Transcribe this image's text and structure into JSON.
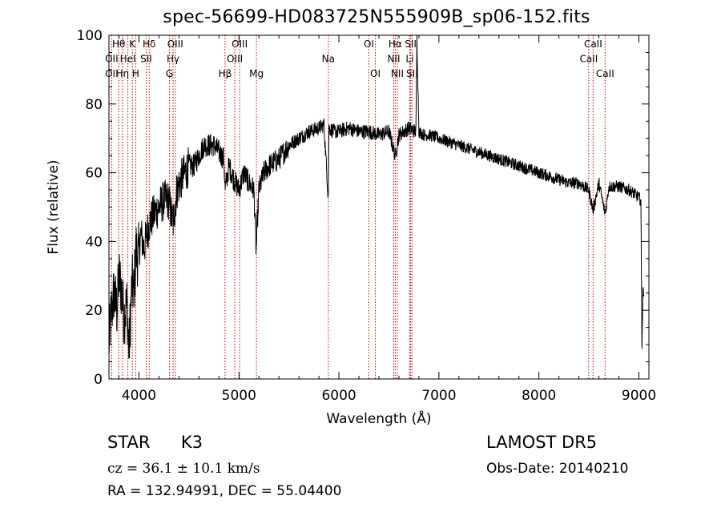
{
  "header": {
    "title": "spec-56699-HD083725N555909B_sp06-152.fits"
  },
  "info": {
    "object_class": "STAR",
    "subclass": "K3",
    "cz": "cz = 36.1 ± 10.1 km/s",
    "radec": "RA = 132.94991, DEC =  55.04400",
    "survey": "LAMOST DR5",
    "obs_date": "Obs-Date: 20140210"
  },
  "chart_data": {
    "type": "line",
    "title": "spec-56699-HD083725N555909B_sp06-152.fits",
    "xlabel": "Wavelength (Å)",
    "ylabel": "Flux (relative)",
    "xlim": [
      3700,
      9100
    ],
    "ylim": [
      0,
      100
    ],
    "xticks": [
      4000,
      5000,
      6000,
      7000,
      8000,
      9000
    ],
    "yticks": [
      0,
      20,
      40,
      60,
      80,
      100
    ],
    "grid": false,
    "line_color": "#000000",
    "marker_color": "#cc0000",
    "spectrum_anchors": {
      "x": [
        3700,
        3720,
        3750,
        3780,
        3800,
        3830,
        3850,
        3880,
        3900,
        3930,
        3950,
        3970,
        3990,
        4020,
        4050,
        4100,
        4150,
        4200,
        4250,
        4300,
        4340,
        4380,
        4420,
        4500,
        4550,
        4600,
        4650,
        4700,
        4750,
        4800,
        4850,
        4861,
        4900,
        4950,
        5000,
        5050,
        5100,
        5150,
        5172,
        5183,
        5200,
        5250,
        5300,
        5400,
        5500,
        5600,
        5700,
        5800,
        5850,
        5893,
        5900,
        5950,
        6000,
        6100,
        6200,
        6300,
        6400,
        6500,
        6563,
        6600,
        6700,
        6770,
        6780,
        6800,
        6850,
        6900,
        7000,
        7100,
        7200,
        7300,
        7400,
        7500,
        7600,
        7700,
        7800,
        7900,
        8000,
        8100,
        8200,
        8300,
        8400,
        8498,
        8542,
        8600,
        8662,
        8700,
        8800,
        8900,
        8950,
        8990,
        9020,
        9030,
        9040,
        9050
      ],
      "y": [
        10,
        18,
        25,
        20,
        30,
        25,
        18,
        22,
        8,
        28,
        25,
        38,
        35,
        42,
        38,
        45,
        48,
        50,
        52,
        52,
        45,
        55,
        58,
        62,
        62,
        65,
        68,
        68,
        68,
        66,
        64,
        55,
        62,
        58,
        55,
        60,
        57,
        55,
        37,
        45,
        55,
        60,
        62,
        64,
        68,
        70,
        72,
        73,
        74,
        53,
        73,
        72,
        72,
        73,
        72,
        72,
        71,
        72,
        65,
        71,
        73,
        72,
        99,
        72,
        71,
        71,
        70,
        69,
        68,
        67,
        66,
        65,
        64,
        63,
        62,
        61,
        60,
        59,
        58,
        57,
        57,
        55,
        49,
        57,
        48,
        56,
        56,
        55,
        54,
        53,
        52,
        10,
        25,
        26
      ]
    },
    "line_markers": [
      {
        "label": "OII",
        "x": 3727,
        "row": 1
      },
      {
        "label": "Hθ",
        "x": 3798,
        "row": 0
      },
      {
        "label": "OII",
        "x": 3727,
        "row": 2
      },
      {
        "label": "Hη",
        "x": 3835,
        "row": 2
      },
      {
        "label": "HeI",
        "x": 3889,
        "row": 1
      },
      {
        "label": "K",
        "x": 3934,
        "row": 0
      },
      {
        "label": "H",
        "x": 3968,
        "row": 2
      },
      {
        "label": "Hδ",
        "x": 4102,
        "row": 0
      },
      {
        "label": "SII",
        "x": 4072,
        "row": 1
      },
      {
        "label": "OIII",
        "x": 4363,
        "row": 0
      },
      {
        "label": "Hγ",
        "x": 4341,
        "row": 1
      },
      {
        "label": "G",
        "x": 4305,
        "row": 2
      },
      {
        "label": "Hβ",
        "x": 4861,
        "row": 2
      },
      {
        "label": "OIII",
        "x": 4959,
        "row": 1
      },
      {
        "label": "OIII",
        "x": 5007,
        "row": 0
      },
      {
        "label": "Mg",
        "x": 5175,
        "row": 2
      },
      {
        "label": "Na",
        "x": 5894,
        "row": 1
      },
      {
        "label": "OI",
        "x": 6300,
        "row": 0
      },
      {
        "label": "OI",
        "x": 6364,
        "row": 2
      },
      {
        "label": "Hα",
        "x": 6563,
        "row": 0
      },
      {
        "label": "NII",
        "x": 6548,
        "row": 1
      },
      {
        "label": "NII",
        "x": 6584,
        "row": 2
      },
      {
        "label": "SII",
        "x": 6717,
        "row": 0
      },
      {
        "label": "Li",
        "x": 6708,
        "row": 1
      },
      {
        "label": "SII",
        "x": 6731,
        "row": 2
      },
      {
        "label": "CaII",
        "x": 8542,
        "row": 0
      },
      {
        "label": "CaII",
        "x": 8498,
        "row": 1
      },
      {
        "label": "CaII",
        "x": 8662,
        "row": 2
      }
    ]
  }
}
